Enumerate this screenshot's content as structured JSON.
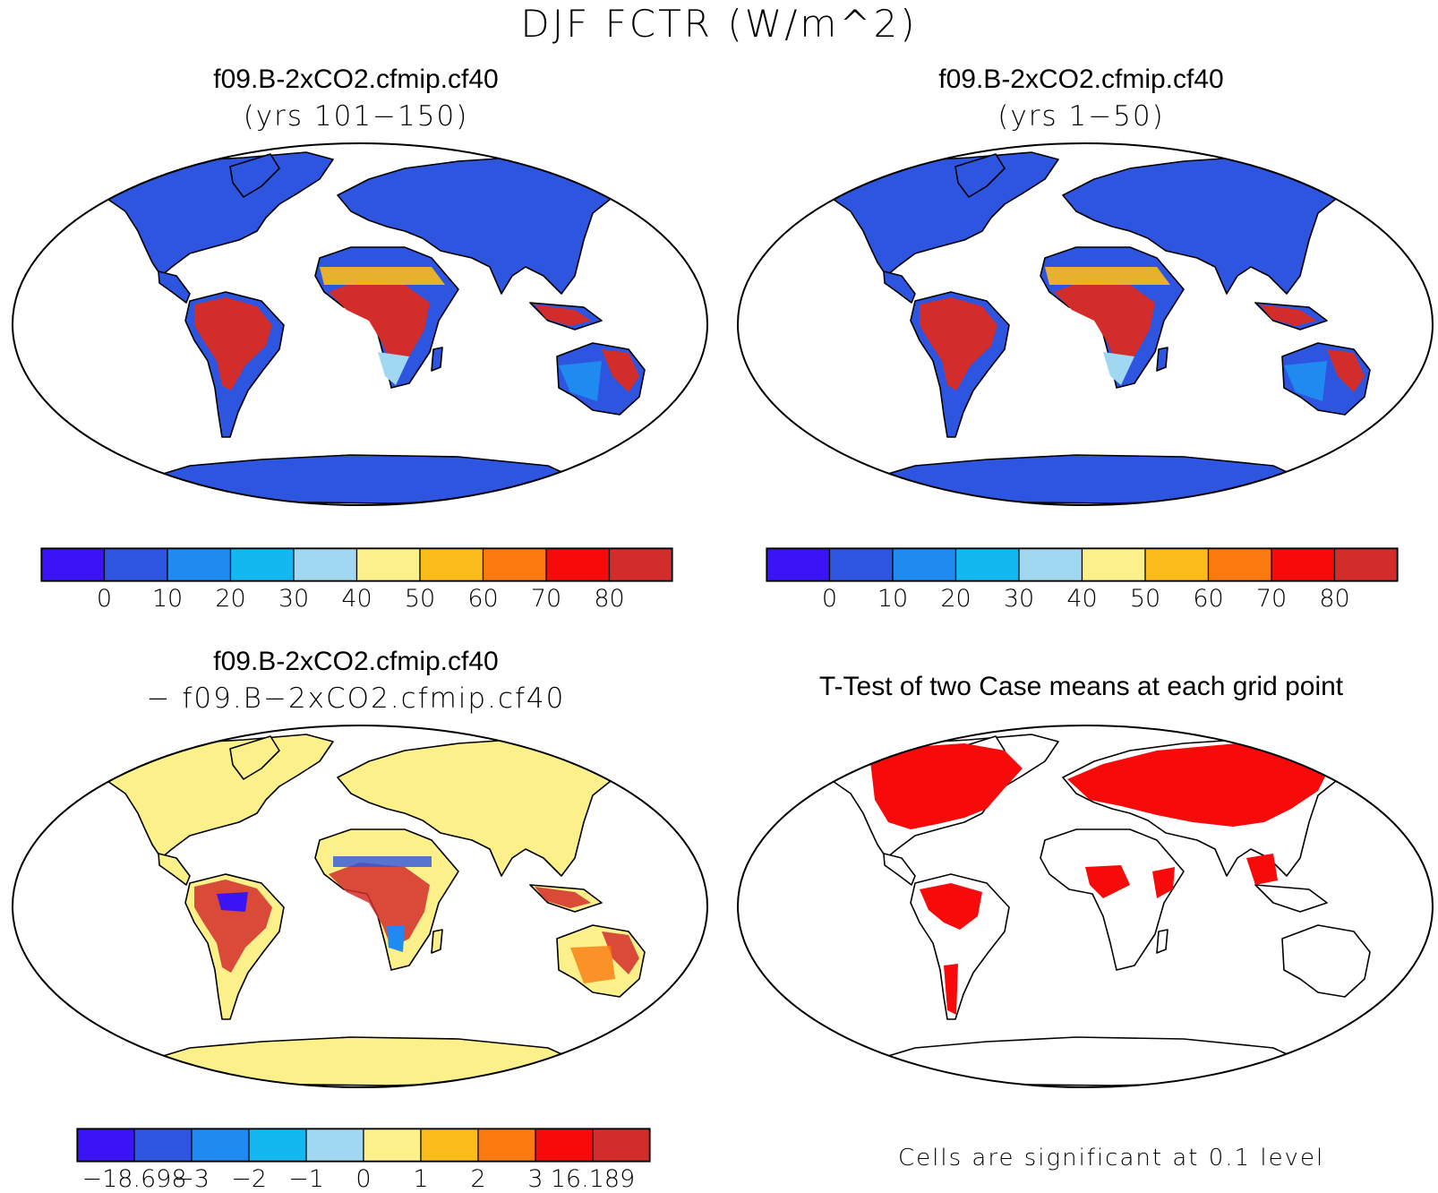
{
  "figure_title": "DJF FCTR (W/m^2)",
  "panels": [
    {
      "title": "f09.B-2xCO2.cfmip.cf40",
      "subtitle": "(yrs 101−150)",
      "colorbar": {
        "colors": [
          "#3a14f4",
          "#2e55e0",
          "#1f8af0",
          "#12b8ef",
          "#a0d8f2",
          "#fbf08a",
          "#fbbb18",
          "#fb7a0f",
          "#f70a0a",
          "#d22d2a"
        ],
        "ticks": [
          "0",
          "10",
          "20",
          "30",
          "40",
          "50",
          "60",
          "70",
          "80"
        ]
      },
      "land_fill": "#2e55e0",
      "tropics_fill": "#d22d2a"
    },
    {
      "title": "f09.B-2xCO2.cfmip.cf40",
      "subtitle": "(yrs 1−50)",
      "colorbar": {
        "colors": [
          "#3a14f4",
          "#2e55e0",
          "#1f8af0",
          "#12b8ef",
          "#a0d8f2",
          "#fbf08a",
          "#fbbb18",
          "#fb7a0f",
          "#f70a0a",
          "#d22d2a"
        ],
        "ticks": [
          "0",
          "10",
          "20",
          "30",
          "40",
          "50",
          "60",
          "70",
          "80"
        ]
      },
      "land_fill": "#2e55e0",
      "tropics_fill": "#d22d2a"
    },
    {
      "title": "f09.B-2xCO2.cfmip.cf40",
      "subtitle": "− f09.B−2xCO2.cfmip.cf40",
      "colorbar": {
        "colors": [
          "#3a14f4",
          "#2e55e0",
          "#1f8af0",
          "#12b8ef",
          "#a0d8f2",
          "#fbf08a",
          "#fbbb18",
          "#fb7a0f",
          "#f70a0a",
          "#d22d2a"
        ],
        "ticks": [
          "−18.698",
          "−3",
          "−2",
          "−1",
          "0",
          "1",
          "2",
          "3",
          "16.189"
        ]
      },
      "land_fill": "#fbf08a",
      "tropics_fill": "#d22d2a"
    },
    {
      "title": "T-Test of two Case means at each grid point",
      "subtitle": "",
      "footnote": "Cells are significant at 0.1 level",
      "land_fill": "#ffffff",
      "sig_fill": "#f70a0a"
    }
  ]
}
